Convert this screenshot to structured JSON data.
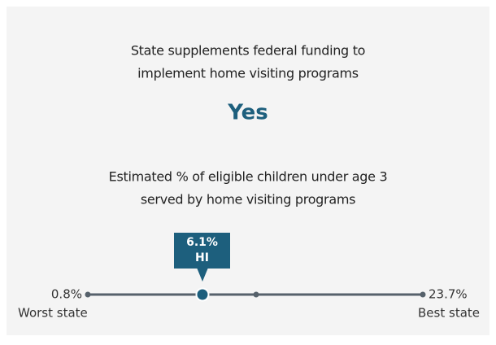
{
  "question1": "State supplements federal funding to implement home visiting programs",
  "question1_lines": [
    "State supplements federal funding to",
    "implement home visiting programs"
  ],
  "answer1": "Yes",
  "question2_lines": [
    "Estimated % of eligible children under age 3",
    "served by home visiting programs"
  ],
  "scale": {
    "min_label": "0.8%",
    "min_caption": "Worst state",
    "max_label": "23.7%",
    "max_caption": "Best state",
    "marker_value": "6.1%",
    "marker_state": "HI"
  }
}
